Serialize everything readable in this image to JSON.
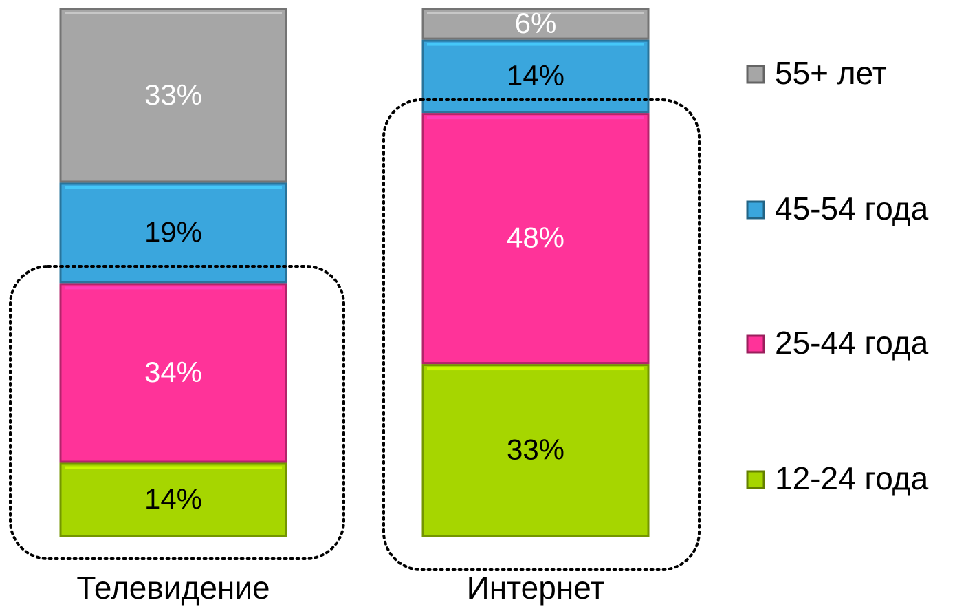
{
  "chart_data": {
    "type": "stacked_bar",
    "categories": [
      "Телевидение",
      "Интернет"
    ],
    "series": [
      {
        "name": "12-24 года",
        "color": "#a6d600",
        "label_color": "#000000",
        "values": [
          14,
          33
        ],
        "value_labels": [
          "14%",
          "33%"
        ]
      },
      {
        "name": "25-44 года",
        "color": "#ff3399",
        "label_color": "#ffffff",
        "values": [
          34,
          48
        ],
        "value_labels": [
          "34%",
          "48%"
        ]
      },
      {
        "name": "45-54 года",
        "color": "#3aa6dd",
        "label_color": "#000000",
        "values": [
          19,
          14
        ],
        "value_labels": [
          "19%",
          "14%"
        ]
      },
      {
        "name": "55+ лет",
        "color": "#a6a6a6",
        "label_color": "#ffffff",
        "values": [
          33,
          6
        ],
        "value_labels": [
          "33%",
          "6%"
        ]
      }
    ],
    "legend": "right"
  }
}
